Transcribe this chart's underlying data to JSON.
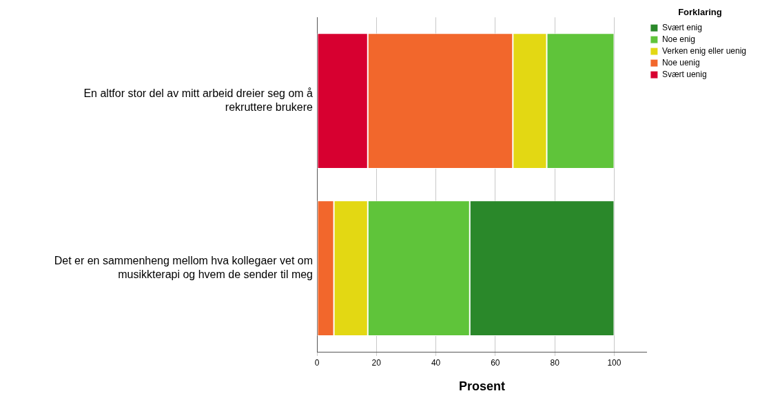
{
  "chart_data": {
    "type": "bar",
    "orientation": "horizontal",
    "stacked": true,
    "categories": [
      "En altfor stor del av mitt arbeid dreier seg om å rekruttere brukere",
      "Det er en sammenheng mellom hva kollegaer vet om musikkterapi og hvem de sender til meg"
    ],
    "series": [
      {
        "name": "Svært uenig",
        "color": "#d70030",
        "values": [
          17.1,
          null
        ]
      },
      {
        "name": "Noe uenig",
        "color": "#f2672c",
        "values": [
          48.8,
          5.7
        ]
      },
      {
        "name": "Verken enig eller uenig",
        "color": "#e3d813",
        "values": [
          11.4,
          11.4
        ]
      },
      {
        "name": "Noe enig",
        "color": "#5fc43a",
        "values": [
          22.7,
          34.3
        ]
      },
      {
        "name": "Svært enig",
        "color": "#2a882a",
        "values": [
          null,
          48.6
        ]
      }
    ],
    "xlabel": "Prosent",
    "legend_title": "Forklaring",
    "legend": "top right",
    "xlim": [
      0,
      111
    ],
    "xticks": [
      0,
      20,
      40,
      60,
      80,
      100
    ],
    "grid": "x"
  }
}
